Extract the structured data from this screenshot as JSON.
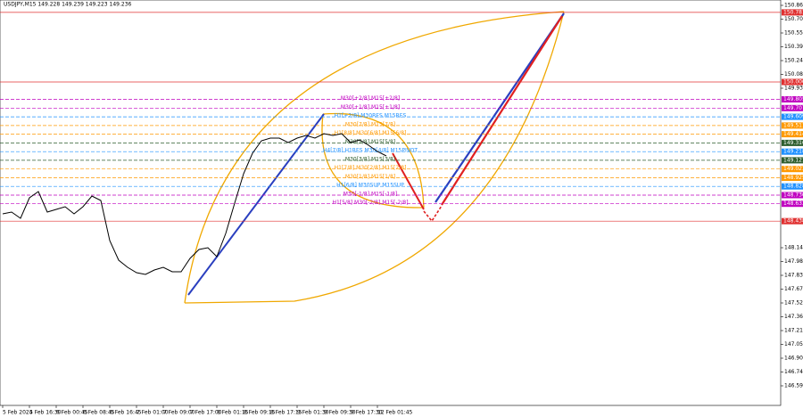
{
  "chart_data": {
    "type": "line",
    "title": "USDJPY,M15 149.228 149.239 149.223 149.236",
    "color": "#000000",
    "categories": [
      "5 Feb 2024",
      null,
      null,
      "5 Feb 16:30",
      null,
      null,
      "6 Feb 00:45",
      null,
      null,
      "6 Feb 08:45",
      null,
      null,
      "6 Feb 16:45",
      null,
      null,
      "7 Feb 01:00",
      null,
      null,
      "7 Feb 09:00",
      null,
      null,
      "7 Feb 17:00",
      null,
      null,
      "8 Feb 01:15",
      null,
      null,
      "8 Feb 09:15",
      null,
      null,
      "8 Feb 17:15",
      null,
      null,
      "9 Feb 01:30",
      null,
      null,
      "9 Feb 09:30",
      null,
      null,
      "9 Feb 17:30",
      null,
      null,
      "12 Feb 01:45",
      null
    ],
    "values": [
      148.52,
      148.54,
      148.47,
      148.7,
      148.77,
      148.54,
      148.57,
      148.6,
      148.52,
      148.6,
      148.72,
      148.67,
      148.22,
      148.0,
      147.92,
      147.86,
      147.84,
      147.89,
      147.92,
      147.87,
      147.87,
      148.02,
      148.12,
      148.14,
      148.04,
      148.3,
      148.64,
      148.97,
      149.2,
      149.34,
      149.37,
      149.37,
      149.32,
      149.37,
      149.4,
      149.37,
      149.42,
      149.4,
      149.42,
      149.32,
      149.35,
      149.29,
      149.22,
      149.17
    ],
    "ylim": [
      146.37,
      150.92
    ],
    "yticks": [
      {
        "value": 150.86,
        "label": "150.860"
      },
      {
        "value": 150.705,
        "label": "150.705"
      },
      {
        "value": 150.55,
        "label": "150.550"
      },
      {
        "value": 150.395,
        "label": "150.395"
      },
      {
        "value": 150.24,
        "label": "150.240"
      },
      {
        "value": 150.085,
        "label": "150.085"
      },
      {
        "value": 149.93,
        "label": "149.930"
      },
      {
        "value": 148.14,
        "label": "148.140"
      },
      {
        "value": 147.985,
        "label": "147.985"
      },
      {
        "value": 147.83,
        "label": "147.830"
      },
      {
        "value": 147.675,
        "label": "147.675"
      },
      {
        "value": 147.52,
        "label": "147.520"
      },
      {
        "value": 147.365,
        "label": "147.365"
      },
      {
        "value": 147.21,
        "label": "147.210"
      },
      {
        "value": 147.055,
        "label": "147.055"
      },
      {
        "value": 146.9,
        "label": "146.900"
      },
      {
        "value": 146.745,
        "label": "146.745"
      },
      {
        "value": 146.59,
        "label": "146.590"
      }
    ],
    "levels": [
      {
        "name": "M30[+2/8] M15[+2/8]",
        "value": 149.805,
        "value_label": "149.805",
        "color": "#c000c0"
      },
      {
        "name": "M30[+1/8] M15[+1/8]",
        "value": 149.707,
        "value_label": "149.707",
        "color": "#c000c0"
      },
      {
        "name": "H1[+2/8] M30RES M15RES",
        "value": 149.609,
        "value_label": "149.609",
        "color": "#1e90ff"
      },
      {
        "name": "M30[7/8] M15[7/8]",
        "value": 149.511,
        "value_label": "149.511",
        "color": "#ff9900"
      },
      {
        "name": "H1[8/8] M30[6/8] M15[6/8]",
        "value": 149.414,
        "value_label": "149.414",
        "color": "#ff9900"
      },
      {
        "name": "M30[5/8] M15[5/8]",
        "value": 149.316,
        "value_label": "149.316",
        "color": "#2e5e2e"
      },
      {
        "name": "H4[7/8] H1RES M30[4/8] M15PIVOT",
        "value": 149.218,
        "value_label": "149.218",
        "color": "#1e90ff"
      },
      {
        "name": "M30[3/8] M15[3/8]",
        "value": 149.121,
        "value_label": "149.121",
        "color": "#2e5e2e"
      },
      {
        "name": "H1[7/8] M30[2/8] M15[2/8]",
        "value": 149.023,
        "value_label": "149.023",
        "color": "#ff9900"
      },
      {
        "name": "M30[1/8] M15[1/8]",
        "value": 148.925,
        "value_label": "148.925",
        "color": "#ff9900"
      },
      {
        "name": "H1[6/8] M30SUP M15SUP",
        "value": 148.828,
        "value_label": "148.828",
        "color": "#1e90ff"
      },
      {
        "name": "M30[-1/8] M15[-1/8]",
        "value": 148.73,
        "value_label": "148.730",
        "color": "#c000c0"
      },
      {
        "name": "H1[5/8] M30[-2/8] M15[-2/8]",
        "value": 148.633,
        "value_label": "148.633",
        "color": "#c000c0"
      }
    ],
    "price_lines": [
      {
        "value": 150.781,
        "value_label": "150.781",
        "color": "#e03030"
      },
      {
        "value": 150.0,
        "value_label": "150.000",
        "color": "#e03030"
      },
      {
        "value": 148.438,
        "value_label": "148.438",
        "color": "#e03030"
      }
    ]
  }
}
